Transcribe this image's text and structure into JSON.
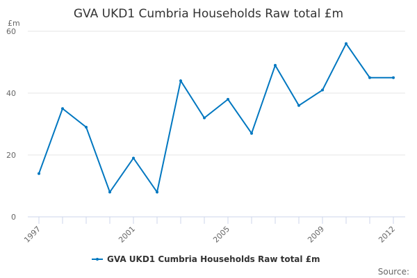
{
  "chart_data": {
    "type": "line",
    "title": "GVA UKD1 Cumbria Households Raw total £m",
    "ylabel": "£m",
    "xlabel": "",
    "x": [
      1997,
      1998,
      1999,
      2000,
      2001,
      2002,
      2003,
      2004,
      2005,
      2006,
      2007,
      2008,
      2009,
      2010,
      2011,
      2012
    ],
    "x_tick_labels": [
      "1997",
      "2001",
      "2005",
      "2009",
      "2012"
    ],
    "y_ticks": [
      0,
      20,
      40,
      60
    ],
    "ylim": [
      0,
      60
    ],
    "grid": true,
    "legend": "bottom",
    "series": [
      {
        "name": "GVA UKD1 Cumbria Households Raw total £m",
        "color": "#0077c0",
        "values": [
          14,
          35,
          29,
          8,
          19,
          8,
          44,
          32,
          38,
          27,
          49,
          36,
          41,
          56,
          45,
          45
        ]
      }
    ],
    "source_label": "Source:"
  }
}
